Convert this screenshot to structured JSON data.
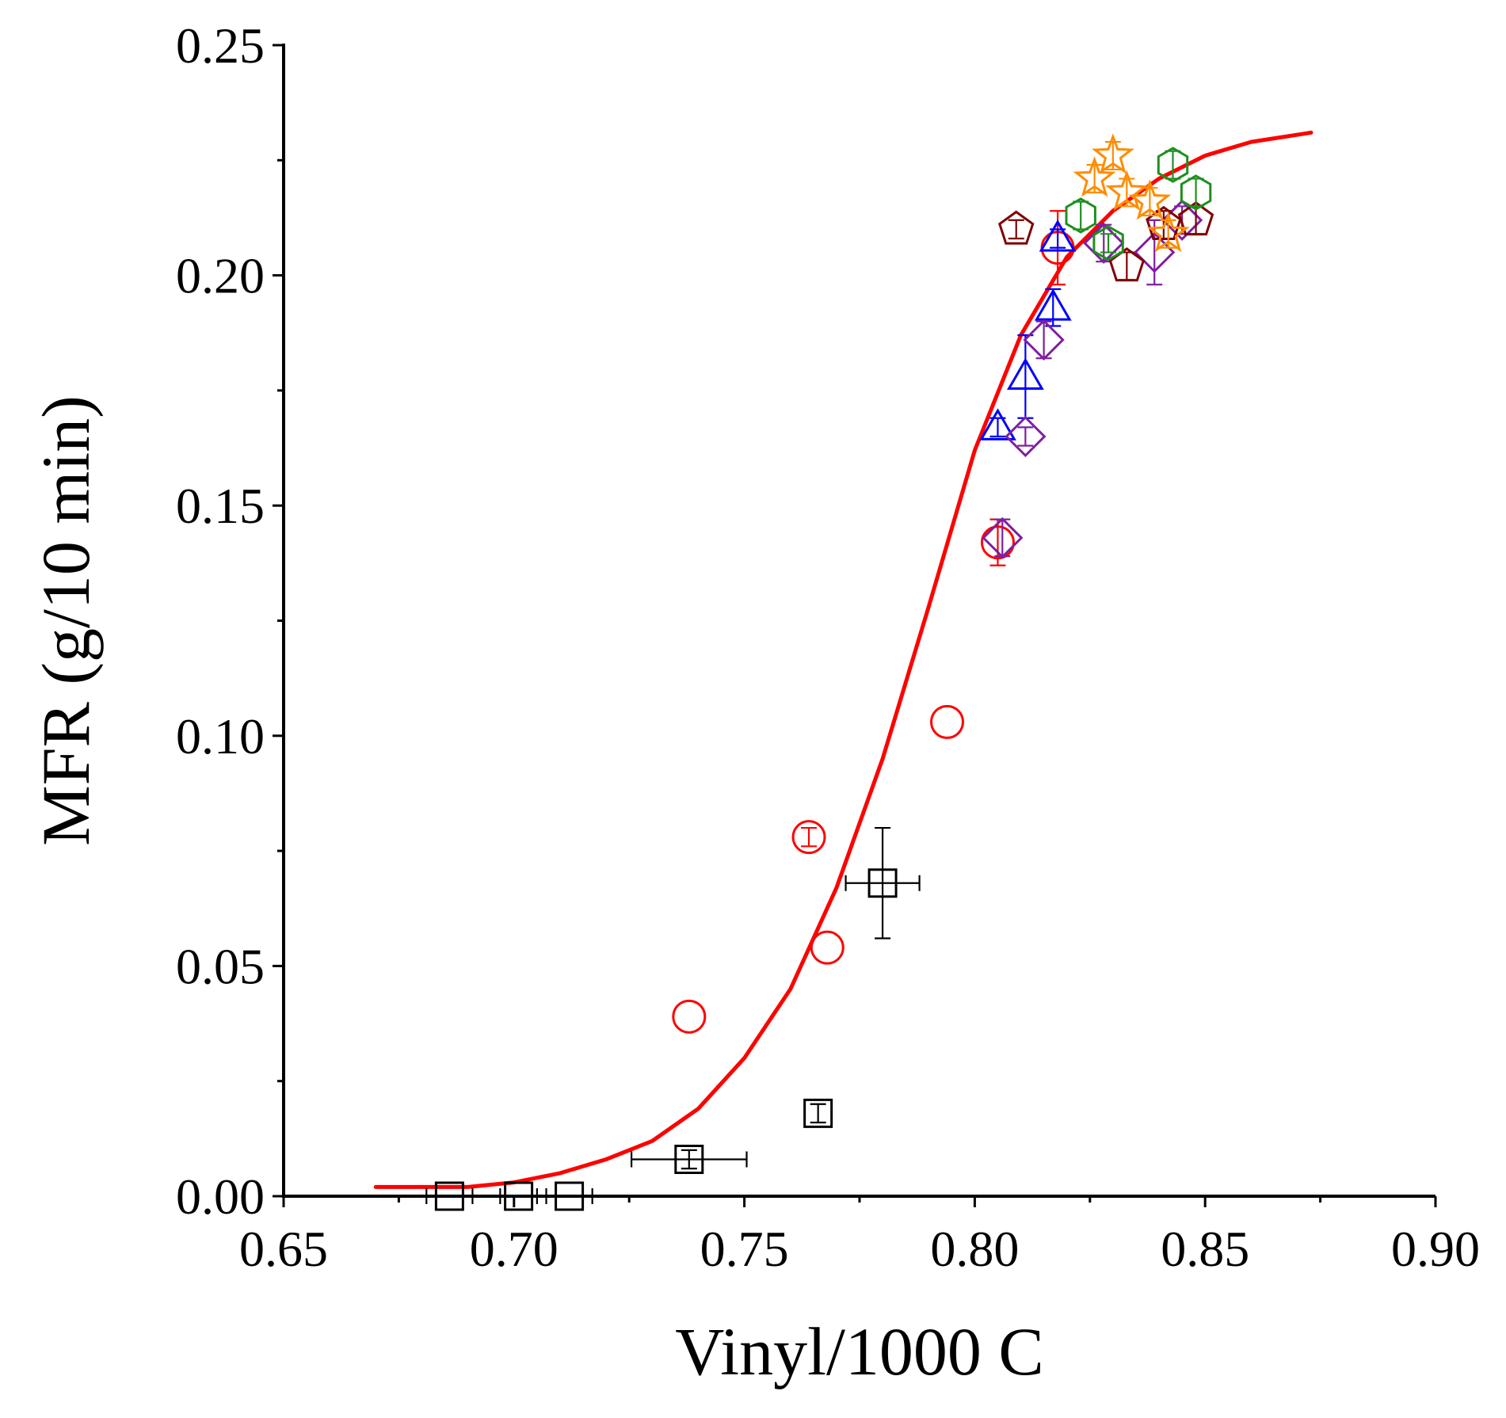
{
  "chart_data": {
    "type": "scatter",
    "title": "",
    "xlabel": "Vinyl/1000 C",
    "ylabel": "MFR (g/10 min)",
    "xlim": [
      0.65,
      0.9
    ],
    "ylim": [
      0.0,
      0.25
    ],
    "x_ticks": [
      "0.65",
      "0.70",
      "0.75",
      "0.80",
      "0.85",
      "0.90"
    ],
    "y_ticks": [
      "0.00",
      "0.05",
      "0.10",
      "0.15",
      "0.20",
      "0.25"
    ],
    "grid": false,
    "legend": "none",
    "fit_curve": {
      "name": "fit",
      "color": "#ff0000",
      "x": [
        0.67,
        0.68,
        0.69,
        0.7,
        0.71,
        0.72,
        0.73,
        0.74,
        0.75,
        0.76,
        0.77,
        0.78,
        0.79,
        0.8,
        0.81,
        0.82,
        0.83,
        0.84,
        0.85,
        0.86,
        0.873
      ],
      "y": [
        0.002,
        0.002,
        0.002,
        0.003,
        0.005,
        0.008,
        0.012,
        0.019,
        0.03,
        0.045,
        0.067,
        0.095,
        0.128,
        0.162,
        0.187,
        0.204,
        0.214,
        0.221,
        0.226,
        0.229,
        0.231
      ]
    },
    "series": [
      {
        "name": "squares",
        "marker": "square",
        "color": "#000000",
        "points": [
          {
            "x": 0.686,
            "y": 0.0,
            "xerr": 0.005,
            "yerr": 0.0
          },
          {
            "x": 0.701,
            "y": 0.0,
            "xerr": 0.004,
            "yerr": 0.0
          },
          {
            "x": 0.712,
            "y": 0.0,
            "xerr": 0.005,
            "yerr": 0.0
          },
          {
            "x": 0.738,
            "y": 0.008,
            "xerr": 0.0125,
            "yerr": 0.002
          },
          {
            "x": 0.766,
            "y": 0.018,
            "xerr": 0.0,
            "yerr": 0.002
          },
          {
            "x": 0.78,
            "y": 0.068,
            "xerr": 0.008,
            "yerr": 0.012
          }
        ]
      },
      {
        "name": "circles",
        "marker": "circle",
        "color": "#ff0000",
        "points": [
          {
            "x": 0.738,
            "y": 0.039,
            "xerr": 0.0,
            "yerr": 0.0
          },
          {
            "x": 0.764,
            "y": 0.078,
            "xerr": 0.0,
            "yerr": 0.002
          },
          {
            "x": 0.768,
            "y": 0.054,
            "xerr": 0.0,
            "yerr": 0.0
          },
          {
            "x": 0.794,
            "y": 0.103,
            "xerr": 0.0,
            "yerr": 0.0
          },
          {
            "x": 0.805,
            "y": 0.142,
            "xerr": 0.0,
            "yerr": 0.005
          },
          {
            "x": 0.818,
            "y": 0.206,
            "xerr": 0.0,
            "yerr": 0.008
          }
        ]
      },
      {
        "name": "triangles",
        "marker": "triangle",
        "color": "#0000ff",
        "points": [
          {
            "x": 0.805,
            "y": 0.167,
            "xerr": 0.0,
            "yerr": 0.002
          },
          {
            "x": 0.811,
            "y": 0.178,
            "xerr": 0.0,
            "yerr": 0.009
          },
          {
            "x": 0.817,
            "y": 0.193,
            "xerr": 0.0,
            "yerr": 0.004
          },
          {
            "x": 0.818,
            "y": 0.208,
            "xerr": 0.0,
            "yerr": 0.002
          }
        ]
      },
      {
        "name": "diamonds",
        "marker": "diamond",
        "color": "#7f1f9f",
        "points": [
          {
            "x": 0.806,
            "y": 0.143,
            "xerr": 0.0,
            "yerr": 0.004
          },
          {
            "x": 0.811,
            "y": 0.165,
            "xerr": 0.0,
            "yerr": 0.002
          },
          {
            "x": 0.815,
            "y": 0.186,
            "xerr": 0.0,
            "yerr": 0.004
          },
          {
            "x": 0.828,
            "y": 0.207,
            "xerr": 0.0,
            "yerr": 0.004
          },
          {
            "x": 0.839,
            "y": 0.205,
            "xerr": 0.0,
            "yerr": 0.007
          },
          {
            "x": 0.845,
            "y": 0.212,
            "xerr": 0.0,
            "yerr": 0.003
          }
        ]
      },
      {
        "name": "pentagons",
        "marker": "pentagon",
        "color": "#7f0000",
        "points": [
          {
            "x": 0.809,
            "y": 0.21,
            "xerr": 0.0,
            "yerr": 0.002
          },
          {
            "x": 0.833,
            "y": 0.202,
            "xerr": 0.0,
            "yerr": 0.003
          },
          {
            "x": 0.841,
            "y": 0.211,
            "xerr": 0.0,
            "yerr": 0.003
          },
          {
            "x": 0.848,
            "y": 0.212,
            "xerr": 0.0,
            "yerr": 0.003
          }
        ]
      },
      {
        "name": "hexagons",
        "marker": "hexagon",
        "color": "#1f8f1f",
        "points": [
          {
            "x": 0.823,
            "y": 0.213,
            "xerr": 0.0,
            "yerr": 0.003
          },
          {
            "x": 0.829,
            "y": 0.207,
            "xerr": 0.0,
            "yerr": 0.002
          },
          {
            "x": 0.843,
            "y": 0.224,
            "xerr": 0.0,
            "yerr": 0.003
          },
          {
            "x": 0.848,
            "y": 0.218,
            "xerr": 0.0,
            "yerr": 0.003
          }
        ]
      },
      {
        "name": "stars",
        "marker": "star",
        "color": "#ff8c00",
        "points": [
          {
            "x": 0.826,
            "y": 0.221,
            "xerr": 0.0,
            "yerr": 0.003
          },
          {
            "x": 0.83,
            "y": 0.226,
            "xerr": 0.0,
            "yerr": 0.003
          },
          {
            "x": 0.833,
            "y": 0.218,
            "xerr": 0.0,
            "yerr": 0.003
          },
          {
            "x": 0.838,
            "y": 0.216,
            "xerr": 0.0,
            "yerr": 0.003
          },
          {
            "x": 0.842,
            "y": 0.209,
            "xerr": 0.0,
            "yerr": 0.003
          }
        ]
      }
    ]
  }
}
